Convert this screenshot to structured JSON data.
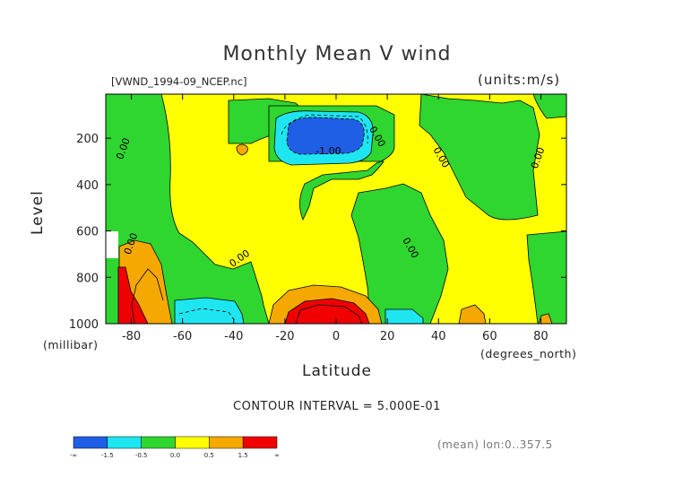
{
  "chart_data": {
    "type": "contour",
    "title": "Monthly Mean V wind",
    "dataset": "[VWND_1994-09_NCEP.nc]",
    "units": "(units:m/s)",
    "xlabel": "Latitude",
    "x_unit": "(degrees_north)",
    "ylabel": "Level",
    "y_unit": "(millibar)",
    "xlim": [
      -90,
      90
    ],
    "ylim": [
      1000,
      10
    ],
    "x_ticks": [
      -80,
      -60,
      -40,
      -20,
      0,
      20,
      40,
      60,
      80
    ],
    "y_ticks": [
      200,
      400,
      600,
      800,
      1000
    ],
    "contour_interval_label": "CONTOUR INTERVAL = 5.000E-01",
    "subset_label": "(mean) lon:0..357.5",
    "contour_labels": [
      {
        "text": "0.00",
        "lat": -82,
        "lev": 250
      },
      {
        "text": "-1.00",
        "lat": -3,
        "lev": 270
      },
      {
        "text": "0.00",
        "lat": 15,
        "lev": 200
      },
      {
        "text": "0.00",
        "lat": 40,
        "lev": 290
      },
      {
        "text": "0.00",
        "lat": 80,
        "lev": 290
      },
      {
        "text": "0.00",
        "lat": -79,
        "lev": 660
      },
      {
        "text": "0.00",
        "lat": 28,
        "lev": 680
      },
      {
        "text": "0.00",
        "lat": -37,
        "lev": 730
      }
    ],
    "color_scale": {
      "bins": [
        {
          "color": "#1e5fe6"
        },
        {
          "color": "#1ee6f0"
        },
        {
          "color": "#2fd62f"
        },
        {
          "color": "#ffff00"
        },
        {
          "color": "#f5a800"
        },
        {
          "color": "#f00000"
        }
      ],
      "tick_labels": [
        "-∞",
        "-1.5",
        "-0.5",
        "0.0",
        "0.5",
        "1.5",
        "∞"
      ]
    }
  }
}
